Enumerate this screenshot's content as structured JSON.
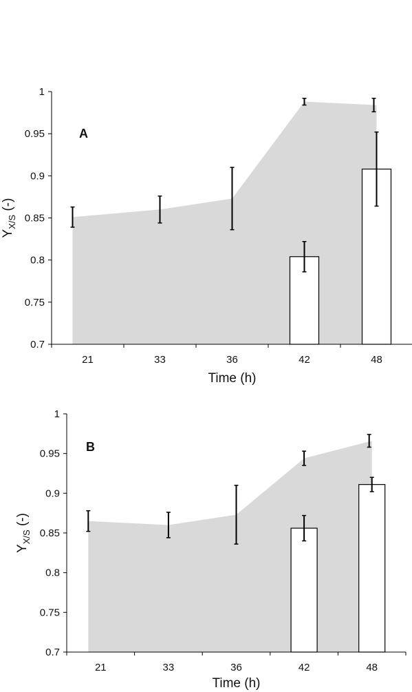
{
  "chart_data": [
    {
      "type": "bar",
      "panel_label": "A",
      "xlabel": "Time (h)",
      "ylabel": {
        "main": "Y",
        "sub": "X/S",
        "suffix": " (-)"
      },
      "ylim": [
        0.7,
        1.0
      ],
      "yticks": [
        "0.7",
        "0.75",
        "0.8",
        "0.85",
        "0.9",
        "0.95",
        "1"
      ],
      "categories": [
        "21",
        "33",
        "36",
        "42",
        "48"
      ],
      "area_series": {
        "values": [
          0.851,
          0.86,
          0.873,
          0.988,
          0.984
        ],
        "errors": [
          0.012,
          0.016,
          0.037,
          0.004,
          0.008
        ]
      },
      "bar_series": {
        "values": [
          null,
          null,
          null,
          0.804,
          0.908
        ],
        "errors": [
          null,
          null,
          null,
          0.018,
          0.044
        ]
      },
      "colors": {
        "area": "#d9d9d9",
        "bar_fill": "#ffffff",
        "bar_stroke": "#000000"
      }
    },
    {
      "type": "bar",
      "panel_label": "B",
      "xlabel": "Time (h)",
      "ylabel": {
        "main": "Y",
        "sub": "X/S",
        "suffix": " (-)"
      },
      "ylim": [
        0.7,
        1.0
      ],
      "yticks": [
        "0.7",
        "0.75",
        "0.8",
        "0.85",
        "0.9",
        "0.95",
        "1"
      ],
      "categories": [
        "21",
        "33",
        "36",
        "42",
        "48"
      ],
      "area_series": {
        "values": [
          0.865,
          0.86,
          0.873,
          0.944,
          0.966
        ],
        "errors": [
          0.013,
          0.016,
          0.037,
          0.009,
          0.008
        ]
      },
      "bar_series": {
        "values": [
          null,
          null,
          null,
          0.856,
          0.911
        ],
        "errors": [
          null,
          null,
          null,
          0.016,
          0.009
        ]
      },
      "colors": {
        "area": "#d9d9d9",
        "bar_fill": "#ffffff",
        "bar_stroke": "#000000"
      }
    }
  ]
}
